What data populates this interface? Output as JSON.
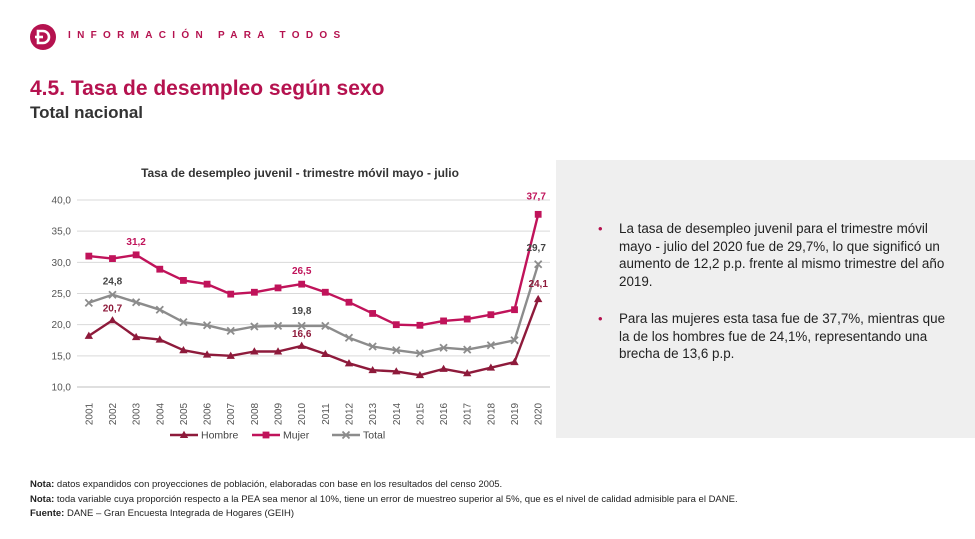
{
  "header": {
    "brand": "INFORMACIÓN PARA TODOS",
    "title": "4.5. Tasa de desempleo según sexo",
    "subtitle": "Total nacional"
  },
  "colors": {
    "accent": "#b5124f",
    "hombre": "#8e1a3b",
    "mujer": "#c0135a",
    "total": "#8c8c8c",
    "panel": "#efefef"
  },
  "chart_data": {
    "type": "line",
    "title": "Tasa de desempleo juvenil - trimestre móvil mayo - julio",
    "xlabel": "",
    "ylabel": "",
    "ylim": [
      10,
      40
    ],
    "yticks": [
      "10,0",
      "15,0",
      "20,0",
      "25,0",
      "30,0",
      "35,0",
      "40,0"
    ],
    "grid": true,
    "legend": "bottom",
    "categories": [
      "2001",
      "2002",
      "2003",
      "2004",
      "2005",
      "2006",
      "2007",
      "2008",
      "2009",
      "2010",
      "2011",
      "2012",
      "2013",
      "2014",
      "2015",
      "2016",
      "2017",
      "2018",
      "2019",
      "2020"
    ],
    "series": [
      {
        "name": "Hombre",
        "marker": "triangle",
        "values": [
          18.2,
          20.7,
          18.0,
          17.6,
          15.9,
          15.2,
          15.0,
          15.7,
          15.7,
          16.6,
          15.3,
          13.8,
          12.7,
          12.5,
          11.9,
          12.9,
          12.2,
          13.1,
          14.0,
          24.1
        ],
        "labels": [
          {
            "index": 1,
            "text": "20,7"
          },
          {
            "index": 9,
            "text": "16,6"
          },
          {
            "index": 19,
            "text": "24,1"
          }
        ]
      },
      {
        "name": "Mujer",
        "marker": "square",
        "values": [
          31.0,
          30.6,
          31.2,
          28.9,
          27.1,
          26.5,
          24.9,
          25.2,
          25.9,
          26.5,
          25.2,
          23.6,
          21.8,
          20.0,
          19.9,
          20.6,
          20.9,
          21.6,
          22.4,
          37.7
        ],
        "labels": [
          {
            "index": 2,
            "text": "31,2"
          },
          {
            "index": 9,
            "text": "26,5"
          },
          {
            "index": 19,
            "text": "37,7"
          }
        ]
      },
      {
        "name": "Total",
        "marker": "x",
        "values": [
          23.5,
          24.8,
          23.6,
          22.4,
          20.4,
          19.9,
          19.0,
          19.7,
          19.8,
          19.8,
          19.8,
          17.9,
          16.5,
          15.9,
          15.4,
          16.3,
          16.0,
          16.7,
          17.5,
          29.7
        ],
        "labels": [
          {
            "index": 1,
            "text": "24,8"
          },
          {
            "index": 9,
            "text": "19,8"
          },
          {
            "index": 19,
            "text": "29,7"
          }
        ]
      }
    ]
  },
  "panel": {
    "bullets": [
      "La tasa de desempleo juvenil para el trimestre móvil mayo - julio del 2020 fue de 29,7%, lo que significó un aumento de 12,2 p.p. frente al mismo trimestre del año 2019.",
      "Para las mujeres esta tasa fue de 37,7%, mientras que la de los hombres fue de 24,1%, representando una brecha de 13,6 p.p."
    ]
  },
  "notes": [
    {
      "label": "Nota:",
      "text": " datos expandidos con proyecciones de población, elaboradas con base en los resultados del censo 2005."
    },
    {
      "label": "Nota:",
      "text": " toda variable cuya proporción respecto a la PEA sea menor al 10%, tiene un error de muestreo superior al 5%, que es el nivel de calidad admisible para el DANE."
    },
    {
      "label": "Fuente:",
      "text": " DANE – Gran Encuesta Integrada de Hogares (GEIH)"
    }
  ]
}
